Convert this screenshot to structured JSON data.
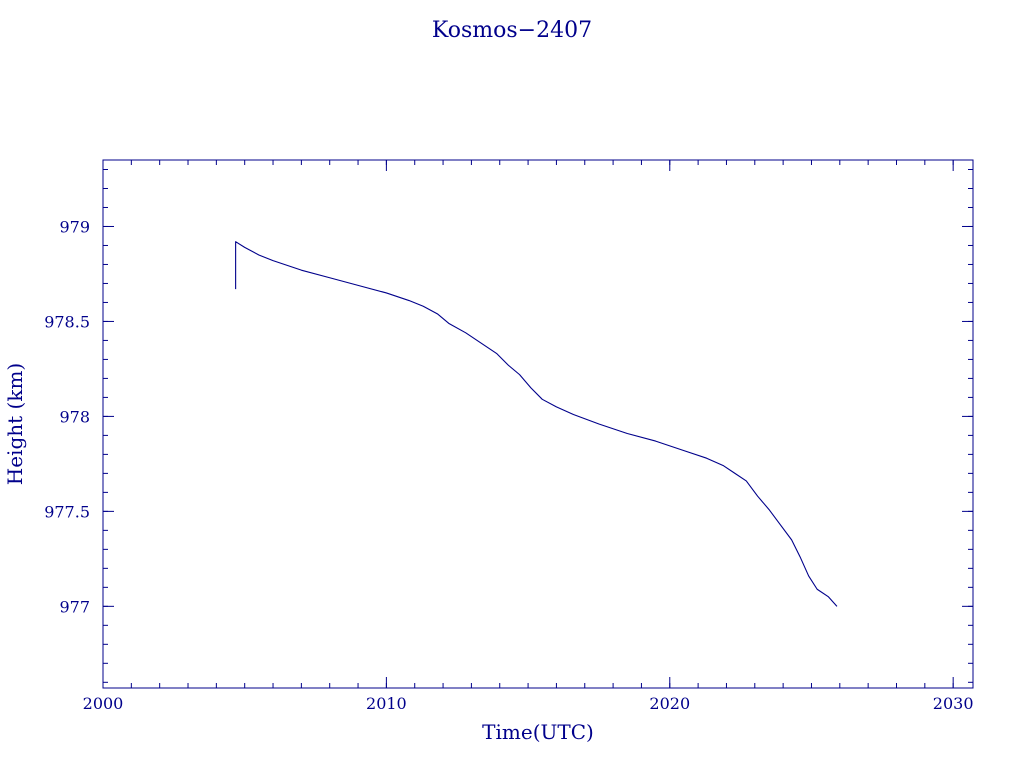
{
  "colors": {
    "ink": "#00008b",
    "background": "#ffffff"
  },
  "chart_data": {
    "type": "line",
    "title": "Kosmos−2407",
    "xlabel": "Time(UTC)",
    "ylabel": "Height (km)",
    "xlim": [
      2000,
      2030.7
    ],
    "ylim": [
      976.57,
      979.35
    ],
    "x_ticks": [
      {
        "value": 2000,
        "label": "2000"
      },
      {
        "value": 2010,
        "label": "2010"
      },
      {
        "value": 2020,
        "label": "2020"
      },
      {
        "value": 2030,
        "label": "2030"
      }
    ],
    "y_ticks": [
      {
        "value": 977,
        "label": "977"
      },
      {
        "value": 977.5,
        "label": "977.5"
      },
      {
        "value": 978,
        "label": "978"
      },
      {
        "value": 978.5,
        "label": "978.5"
      },
      {
        "value": 979,
        "label": "979"
      }
    ],
    "x_minor_step": 1,
    "y_minor_step": 0.1,
    "grid": false,
    "legend": "none",
    "series": [
      {
        "color": "#00008b",
        "points": [
          [
            2004.68,
            978.67
          ],
          [
            2004.68,
            978.92
          ],
          [
            2005.0,
            978.89
          ],
          [
            2005.5,
            978.85
          ],
          [
            2006.0,
            978.82
          ],
          [
            2007.0,
            978.77
          ],
          [
            2008.0,
            978.73
          ],
          [
            2009.0,
            978.69
          ],
          [
            2010.0,
            978.65
          ],
          [
            2010.8,
            978.61
          ],
          [
            2011.3,
            978.58
          ],
          [
            2011.8,
            978.54
          ],
          [
            2012.2,
            978.49
          ],
          [
            2012.8,
            978.44
          ],
          [
            2013.3,
            978.39
          ],
          [
            2013.9,
            978.33
          ],
          [
            2014.3,
            978.27
          ],
          [
            2014.7,
            978.22
          ],
          [
            2015.1,
            978.15
          ],
          [
            2015.5,
            978.09
          ],
          [
            2016.0,
            978.05
          ],
          [
            2016.6,
            978.01
          ],
          [
            2017.5,
            977.96
          ],
          [
            2018.5,
            977.91
          ],
          [
            2019.5,
            977.87
          ],
          [
            2020.5,
            977.82
          ],
          [
            2021.3,
            977.78
          ],
          [
            2021.9,
            977.74
          ],
          [
            2022.3,
            977.7
          ],
          [
            2022.7,
            977.66
          ],
          [
            2023.1,
            977.58
          ],
          [
            2023.5,
            977.51
          ],
          [
            2023.9,
            977.43
          ],
          [
            2024.3,
            977.35
          ],
          [
            2024.6,
            977.26
          ],
          [
            2024.9,
            977.16
          ],
          [
            2025.2,
            977.09
          ],
          [
            2025.6,
            977.05
          ],
          [
            2025.9,
            977.0
          ]
        ]
      }
    ]
  }
}
